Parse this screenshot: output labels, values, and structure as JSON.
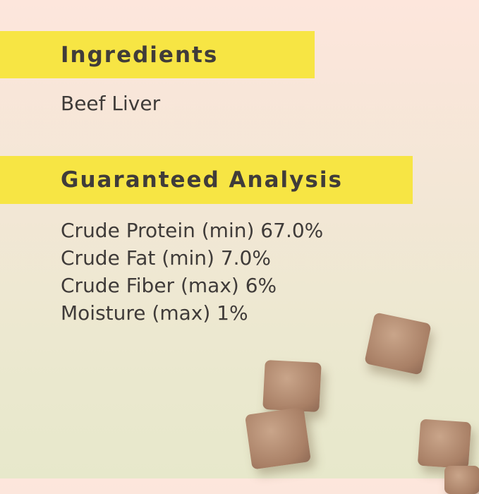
{
  "ingredients": {
    "heading": "Ingredients",
    "text": "Beef Liver"
  },
  "analysis": {
    "heading": "Guaranteed Analysis",
    "items": [
      "Crude Protein (min) 67.0%",
      "Crude Fat (min) 7.0%",
      "Crude Fiber (max) 6%",
      "Moisture (max) 1%"
    ]
  },
  "colors": {
    "highlight": "#f7e544",
    "text": "#3f3b39",
    "treat": "#b08a70"
  }
}
